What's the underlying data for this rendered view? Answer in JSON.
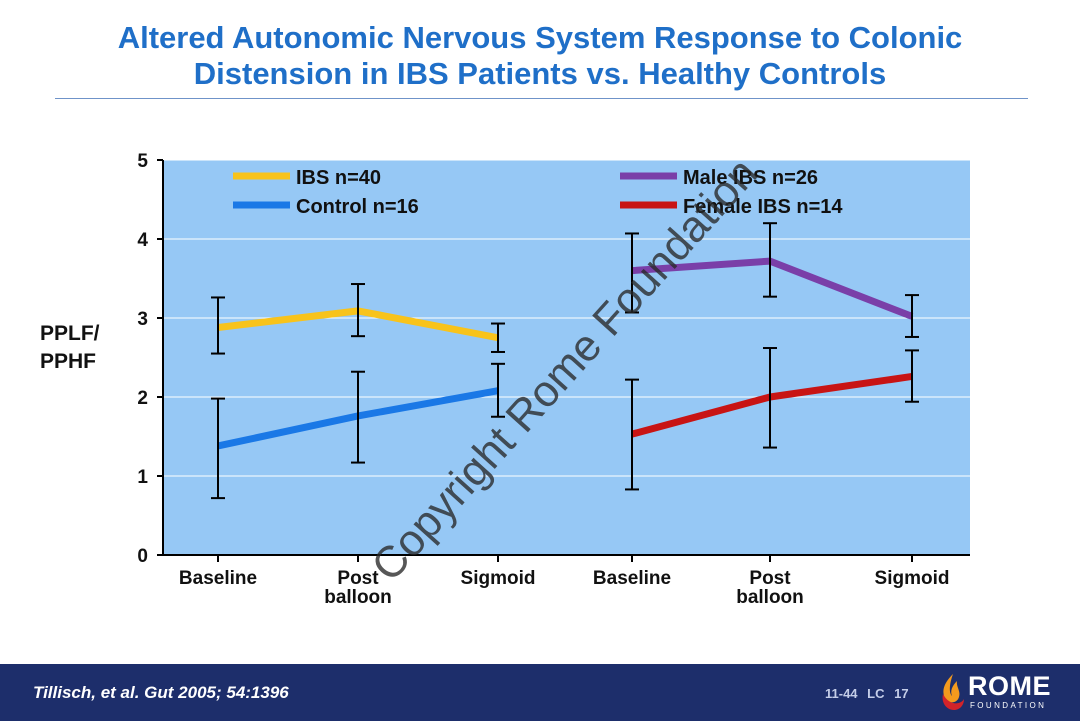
{
  "slide": {
    "title_line1": "Altered Autonomic Nervous System Response to Colonic",
    "title_line2": "Distension in IBS Patients vs. Healthy Controls",
    "watermark": "Copyright Rome Foundation"
  },
  "footer": {
    "citation": "Tillisch, et al. Gut 2005; 54:1396",
    "slide_code": "11-44  LC 17",
    "logo_name": "ROME",
    "logo_sub": "FOUNDATION"
  },
  "colors": {
    "plot_bg": "#96c8f5",
    "ibs": "#f8c31b",
    "control": "#1a78e6",
    "male_ibs": "#7a3fa8",
    "female_ibs": "#c81414",
    "title": "#1f6fc8",
    "footer_bg": "#1d2e6b"
  },
  "chart_data": {
    "type": "line",
    "title": "",
    "ylabel_lines": [
      "PPLF/",
      "PPHF"
    ],
    "xlabel": "",
    "ylim": [
      0,
      5
    ],
    "yticks": [
      0,
      1,
      2,
      3,
      4,
      5
    ],
    "grid": true,
    "legend": [
      {
        "name": "IBS n=40",
        "color": "#f8c31b",
        "placement": "top-left"
      },
      {
        "name": "Control n=16",
        "color": "#1a78e6",
        "placement": "top-left"
      },
      {
        "name": "Male IBS n=26",
        "color": "#7a3fa8",
        "placement": "top-right"
      },
      {
        "name": "Female IBS n=14",
        "color": "#c81414",
        "placement": "top-right"
      }
    ],
    "groups": [
      {
        "categories": [
          [
            "Baseline"
          ],
          [
            "Post",
            "balloon"
          ],
          [
            "Sigmoid"
          ]
        ],
        "series": [
          {
            "name": "IBS n=40",
            "color": "#f8c31b",
            "values": [
              2.88,
              3.09,
              2.75
            ],
            "err_low": [
              2.55,
              2.77,
              2.57
            ],
            "err_high": [
              3.26,
              3.43,
              2.93
            ]
          },
          {
            "name": "Control n=16",
            "color": "#1a78e6",
            "values": [
              1.38,
              1.76,
              2.08
            ],
            "err_low": [
              0.72,
              1.17,
              1.75
            ],
            "err_high": [
              1.98,
              2.32,
              2.42
            ]
          }
        ]
      },
      {
        "categories": [
          [
            "Baseline"
          ],
          [
            "Post",
            "balloon"
          ],
          [
            "Sigmoid"
          ]
        ],
        "series": [
          {
            "name": "Male IBS n=26",
            "color": "#7a3fa8",
            "values": [
              3.6,
              3.72,
              3.02
            ],
            "err_low": [
              3.07,
              3.27,
              2.76
            ],
            "err_high": [
              4.07,
              4.2,
              3.29
            ]
          },
          {
            "name": "Female IBS n=14",
            "color": "#c81414",
            "values": [
              1.53,
              2.0,
              2.26
            ],
            "err_low": [
              0.83,
              1.36,
              1.94
            ],
            "err_high": [
              2.22,
              2.62,
              2.59
            ]
          }
        ]
      }
    ]
  }
}
